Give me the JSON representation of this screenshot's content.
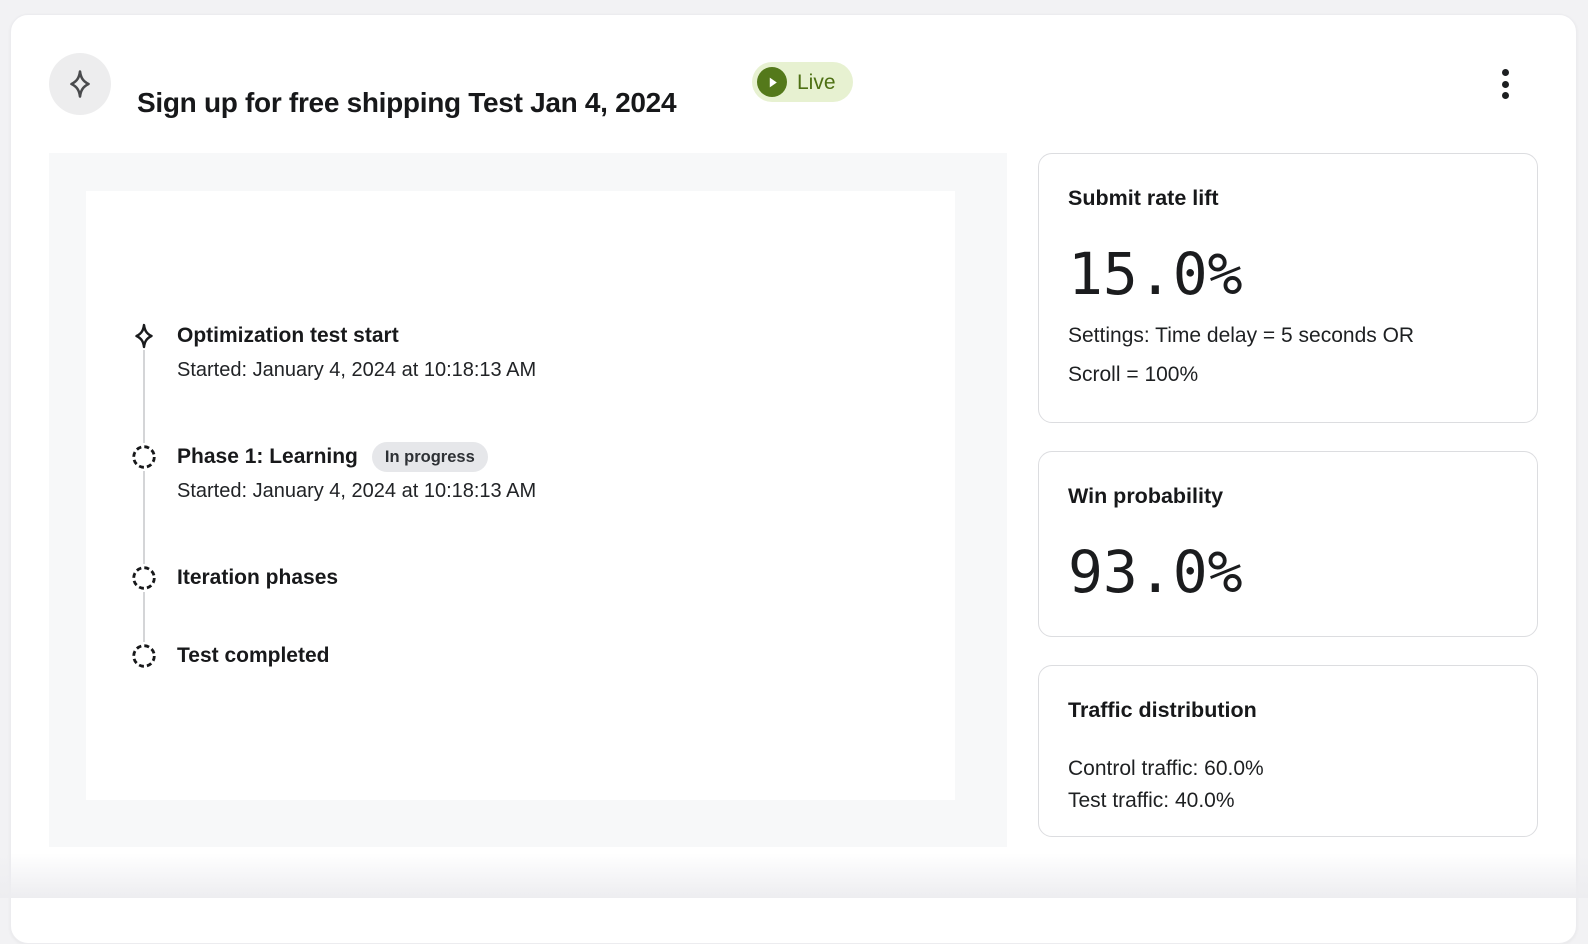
{
  "header": {
    "title": "Sign up for free shipping Test Jan 4, 2024",
    "status_badge": {
      "label": "Live"
    },
    "avatar_icon": "sparkle-icon",
    "menu_icon": "kebab-menu-icon"
  },
  "timeline": {
    "items": [
      {
        "icon": "sparkle",
        "title": "Optimization test start",
        "subtitle": "Started: January 4, 2024 at 10:18:13 AM"
      },
      {
        "icon": "dashed-circle",
        "title": "Phase 1: Learning",
        "badge": "In progress",
        "subtitle": "Started: January 4, 2024 at 10:18:13 AM"
      },
      {
        "icon": "dashed-circle",
        "title": "Iteration phases"
      },
      {
        "icon": "dashed-circle",
        "title": "Test completed"
      }
    ]
  },
  "stats": {
    "submit_rate_lift": {
      "title": "Submit rate lift",
      "value": "15.0%",
      "description_lines": [
        "Settings: Time delay = 5 seconds OR",
        "Scroll = 100%"
      ]
    },
    "win_probability": {
      "title": "Win probability",
      "value": "93.0%"
    },
    "traffic_distribution": {
      "title": "Traffic distribution",
      "lines": [
        "Control traffic: 60.0%",
        "Test traffic: 40.0%"
      ]
    }
  },
  "colors": {
    "page_bg": "#f2f2f4",
    "panel_bg": "#f7f8f9",
    "card_border": "#dcdde0",
    "live_badge_bg": "#e7f1d1",
    "live_badge_icon": "#54791b",
    "live_badge_text": "#4e7014",
    "in_progress_badge_bg": "#e6e7ea"
  }
}
